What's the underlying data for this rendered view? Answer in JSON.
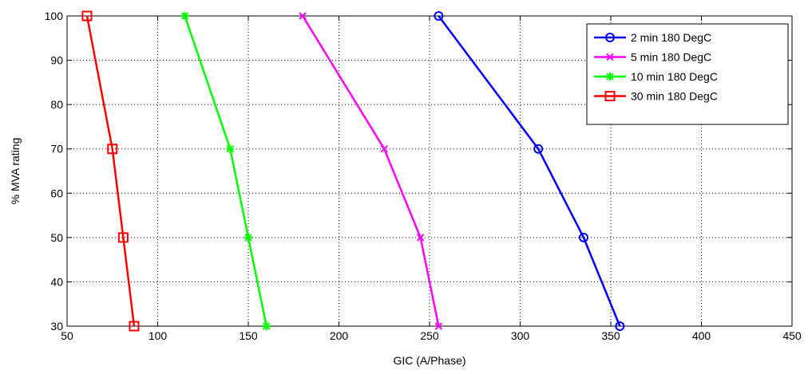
{
  "chart_data": {
    "type": "line",
    "title": "",
    "xlabel": "GIC (A/Phase)",
    "ylabel": "% MVA rating",
    "xlim": [
      50,
      450
    ],
    "ylim": [
      30,
      100
    ],
    "xticks": [
      50,
      100,
      150,
      200,
      250,
      300,
      350,
      400,
      450
    ],
    "yticks": [
      30,
      40,
      50,
      60,
      70,
      80,
      90,
      100
    ],
    "grid": true,
    "legend_position": "top-right",
    "series": [
      {
        "name": "2 min 180 DegC",
        "color": "#0000ff",
        "marker": "circle",
        "points": [
          [
            255,
            100
          ],
          [
            310,
            70
          ],
          [
            335,
            50
          ],
          [
            355,
            30
          ]
        ]
      },
      {
        "name": "5 min 180 DegC",
        "color": "#ff00ff",
        "marker": "x",
        "points": [
          [
            180,
            100
          ],
          [
            225,
            70
          ],
          [
            245,
            50
          ],
          [
            255,
            30
          ]
        ]
      },
      {
        "name": "10 min 180 DegC",
        "color": "#00ff00",
        "marker": "star",
        "points": [
          [
            115,
            100
          ],
          [
            140,
            70
          ],
          [
            150,
            50
          ],
          [
            160,
            30
          ]
        ]
      },
      {
        "name": "30 min 180 DegC",
        "color": "#ff0000",
        "marker": "square",
        "points": [
          [
            61,
            100
          ],
          [
            75,
            70
          ],
          [
            81,
            50
          ],
          [
            87,
            30
          ]
        ]
      }
    ]
  }
}
